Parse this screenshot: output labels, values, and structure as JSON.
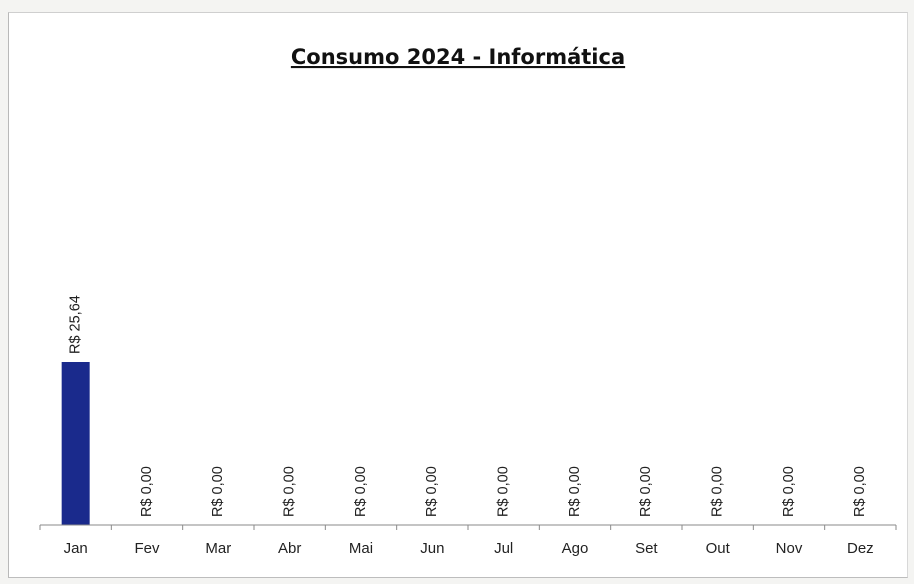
{
  "chart_data": {
    "type": "bar",
    "title": "Consumo 2024 - Informática",
    "categories": [
      "Jan",
      "Fev",
      "Mar",
      "Abr",
      "Mai",
      "Jun",
      "Jul",
      "Ago",
      "Set",
      "Out",
      "Nov",
      "Dez"
    ],
    "values": [
      25.64,
      0,
      0,
      0,
      0,
      0,
      0,
      0,
      0,
      0,
      0,
      0
    ],
    "data_labels": [
      "R$ 25,64",
      "R$ 0,00",
      "R$ 0,00",
      "R$ 0,00",
      "R$ 0,00",
      "R$ 0,00",
      "R$ 0,00",
      "R$ 0,00",
      "R$ 0,00",
      "R$ 0,00",
      "R$ 0,00",
      "R$ 0,00"
    ],
    "xlabel": "",
    "ylabel": "",
    "ylim": [
      0,
      70
    ],
    "grid": false,
    "legend": "none",
    "bar_color": "#1a2a8c"
  }
}
